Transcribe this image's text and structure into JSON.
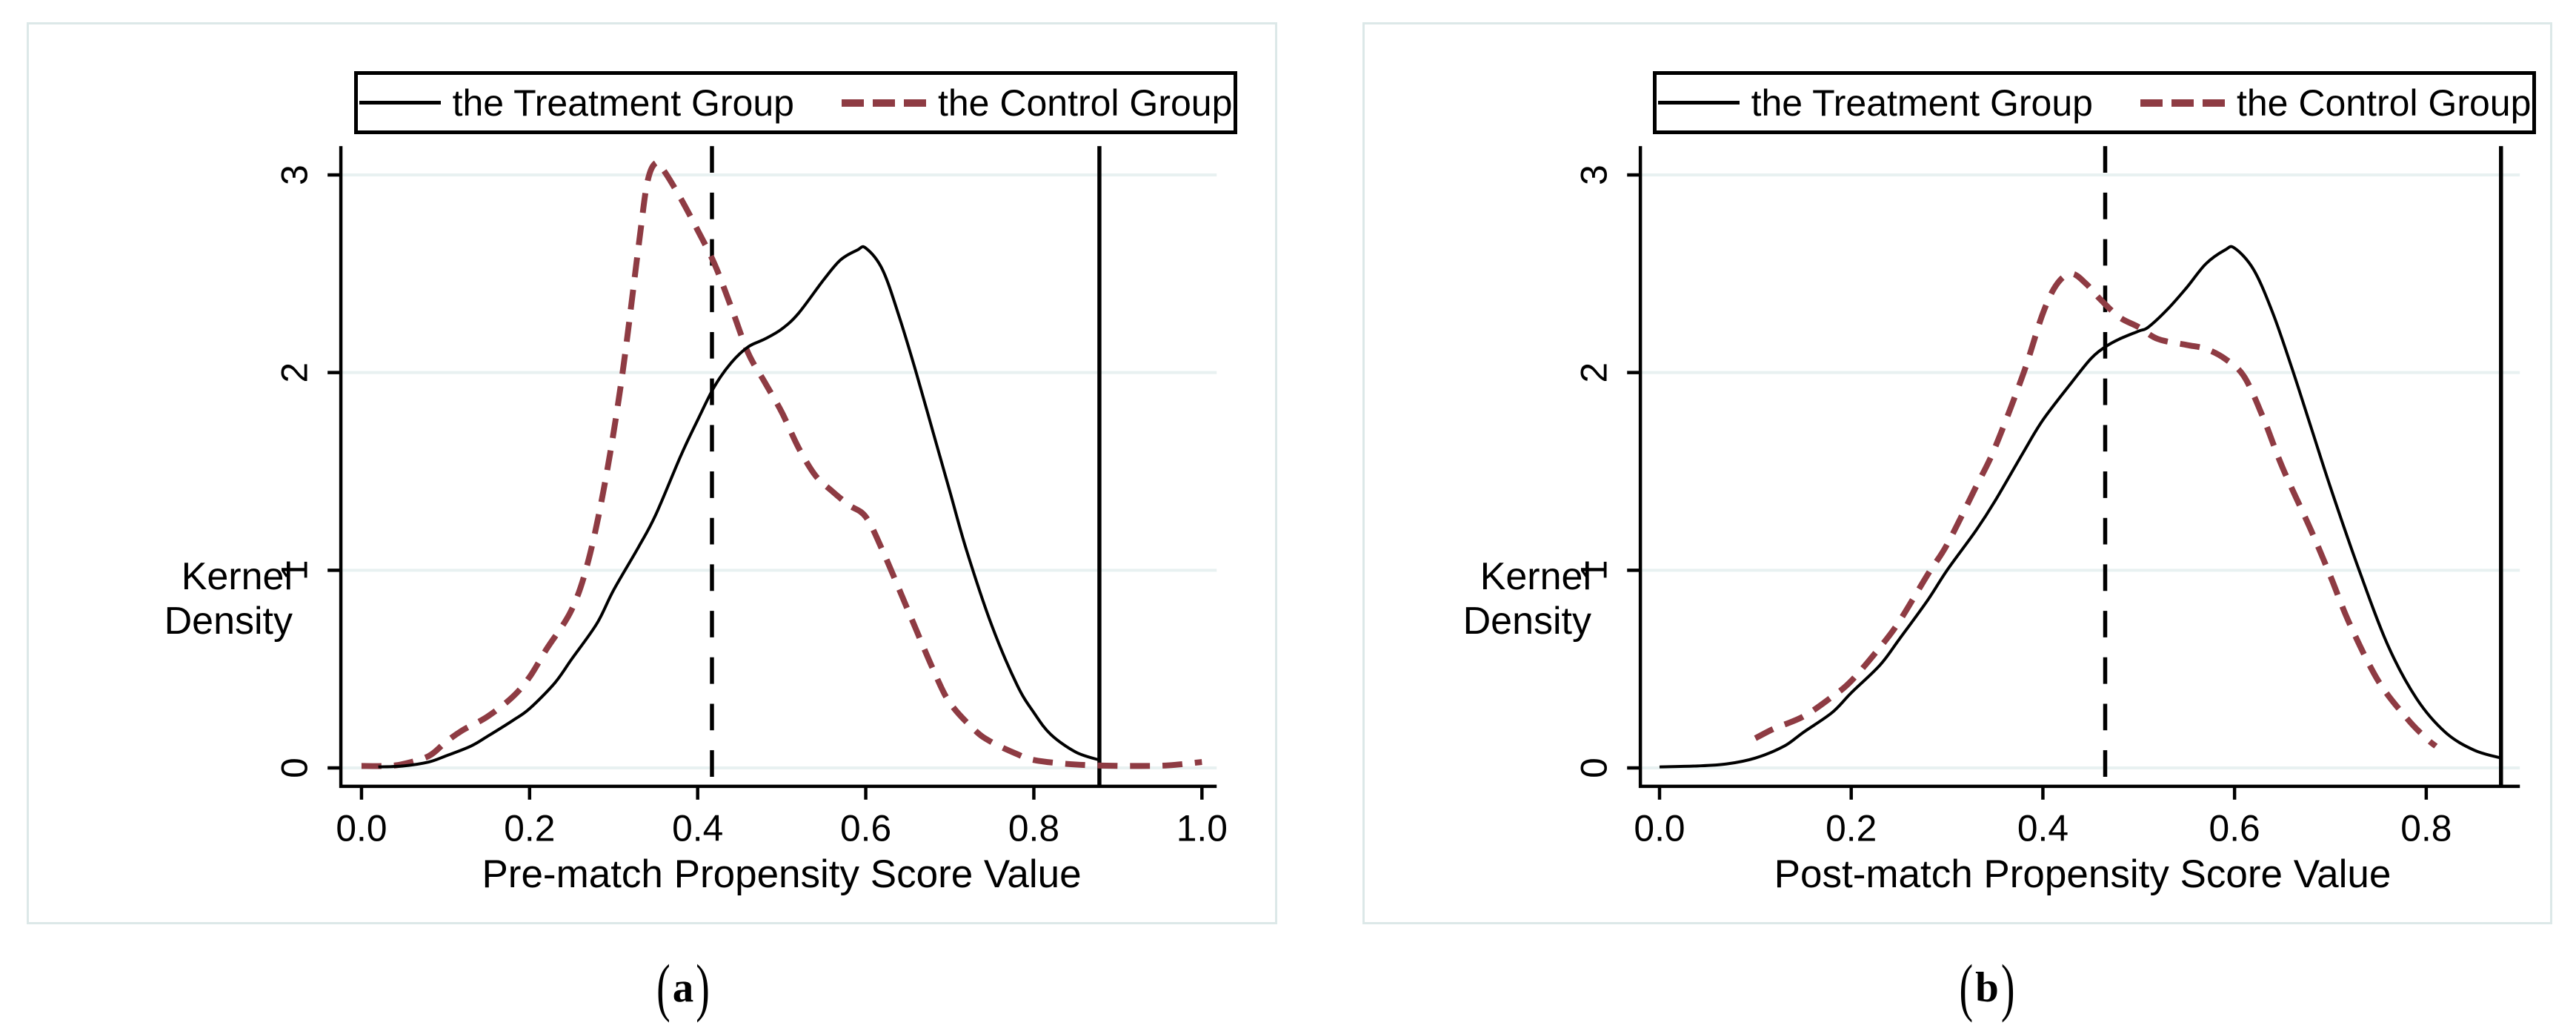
{
  "colors": {
    "treatment": "#000000",
    "control": "#8e3b43",
    "grid": "#e8f1f1",
    "panel_border": "#dce8e8",
    "axis": "#000000",
    "background": "#ffffff"
  },
  "legend": {
    "treatment_label": "the Treatment Group",
    "control_label": "the Control Group"
  },
  "panels": [
    {
      "caption": "(a)",
      "caption_open": "(",
      "caption_letter": "a",
      "caption_close": ")",
      "xlabel": "Pre-match Propensity Score Value",
      "ylabel": "Kernel Density"
    },
    {
      "caption": "(b)",
      "caption_open": "(",
      "caption_letter": "b",
      "caption_close": ")",
      "xlabel": "Post-match Propensity Score Value",
      "ylabel": "Kernel Density"
    }
  ],
  "chart_data": [
    {
      "type": "line",
      "title": "",
      "xlabel": "Pre-match Propensity Score Value",
      "ylabel": "Kernel Density",
      "xlim": [
        -0.025,
        1.02
      ],
      "ylim": [
        0,
        3.15
      ],
      "xticks": [
        0.0,
        0.2,
        0.4,
        0.6,
        0.8,
        1.0
      ],
      "xtick_labels": [
        "0.0",
        "0.2",
        "0.4",
        "0.6",
        "0.8",
        "1.0"
      ],
      "yticks": [
        0,
        1,
        2,
        3
      ],
      "ytick_labels": [
        "0",
        "1",
        "2",
        "3"
      ],
      "grid": "horizontal",
      "legend_position": "top",
      "vlines": [
        {
          "x": 0.417,
          "style": "dashed",
          "color": "#000000"
        },
        {
          "x": 0.878,
          "style": "solid",
          "color": "#000000"
        }
      ],
      "series": [
        {
          "name": "the Control Group",
          "style": "dashed",
          "color": "#8e3b43",
          "points": [
            [
              0.0,
              0.01
            ],
            [
              0.03,
              0.01
            ],
            [
              0.05,
              0.02
            ],
            [
              0.08,
              0.06
            ],
            [
              0.1,
              0.13
            ],
            [
              0.12,
              0.19
            ],
            [
              0.15,
              0.26
            ],
            [
              0.18,
              0.36
            ],
            [
              0.2,
              0.46
            ],
            [
              0.22,
              0.6
            ],
            [
              0.25,
              0.8
            ],
            [
              0.27,
              1.05
            ],
            [
              0.29,
              1.45
            ],
            [
              0.31,
              1.98
            ],
            [
              0.33,
              2.65
            ],
            [
              0.34,
              2.96
            ],
            [
              0.35,
              3.06
            ],
            [
              0.36,
              3.02
            ],
            [
              0.38,
              2.88
            ],
            [
              0.4,
              2.72
            ],
            [
              0.42,
              2.55
            ],
            [
              0.44,
              2.33
            ],
            [
              0.46,
              2.1
            ],
            [
              0.48,
              1.95
            ],
            [
              0.5,
              1.8
            ],
            [
              0.52,
              1.62
            ],
            [
              0.54,
              1.48
            ],
            [
              0.56,
              1.4
            ],
            [
              0.58,
              1.33
            ],
            [
              0.6,
              1.27
            ],
            [
              0.62,
              1.1
            ],
            [
              0.65,
              0.8
            ],
            [
              0.68,
              0.5
            ],
            [
              0.7,
              0.33
            ],
            [
              0.73,
              0.19
            ],
            [
              0.75,
              0.13
            ],
            [
              0.78,
              0.07
            ],
            [
              0.8,
              0.04
            ],
            [
              0.84,
              0.02
            ],
            [
              0.88,
              0.012
            ],
            [
              0.92,
              0.01
            ],
            [
              0.96,
              0.013
            ],
            [
              1.0,
              0.03
            ]
          ]
        },
        {
          "name": "the Treatment Group",
          "style": "solid",
          "color": "#000000",
          "points": [
            [
              0.02,
              0.005
            ],
            [
              0.05,
              0.01
            ],
            [
              0.08,
              0.03
            ],
            [
              0.1,
              0.06
            ],
            [
              0.13,
              0.11
            ],
            [
              0.15,
              0.16
            ],
            [
              0.18,
              0.24
            ],
            [
              0.2,
              0.3
            ],
            [
              0.23,
              0.43
            ],
            [
              0.25,
              0.55
            ],
            [
              0.28,
              0.73
            ],
            [
              0.3,
              0.9
            ],
            [
              0.33,
              1.12
            ],
            [
              0.35,
              1.28
            ],
            [
              0.38,
              1.58
            ],
            [
              0.4,
              1.76
            ],
            [
              0.42,
              1.93
            ],
            [
              0.44,
              2.05
            ],
            [
              0.46,
              2.13
            ],
            [
              0.48,
              2.17
            ],
            [
              0.5,
              2.22
            ],
            [
              0.52,
              2.3
            ],
            [
              0.55,
              2.47
            ],
            [
              0.57,
              2.57
            ],
            [
              0.59,
              2.62
            ],
            [
              0.6,
              2.63
            ],
            [
              0.62,
              2.52
            ],
            [
              0.64,
              2.28
            ],
            [
              0.66,
              2.0
            ],
            [
              0.68,
              1.7
            ],
            [
              0.7,
              1.4
            ],
            [
              0.72,
              1.1
            ],
            [
              0.75,
              0.72
            ],
            [
              0.78,
              0.42
            ],
            [
              0.8,
              0.28
            ],
            [
              0.82,
              0.17
            ],
            [
              0.85,
              0.08
            ],
            [
              0.878,
              0.04
            ]
          ]
        }
      ]
    },
    {
      "type": "line",
      "title": "",
      "xlabel": "Post-match Propensity Score Value",
      "ylabel": "Kernel Density",
      "xlim": [
        -0.02,
        0.9
      ],
      "ylim": [
        0,
        3.15
      ],
      "xticks": [
        0.0,
        0.2,
        0.4,
        0.6,
        0.8
      ],
      "xtick_labels": [
        "0.0",
        "0.2",
        "0.4",
        "0.6",
        "0.8"
      ],
      "yticks": [
        0,
        1,
        2,
        3
      ],
      "ytick_labels": [
        "0",
        "1",
        "2",
        "3"
      ],
      "grid": "horizontal",
      "legend_position": "top",
      "vlines": [
        {
          "x": 0.465,
          "style": "dashed",
          "color": "#000000"
        },
        {
          "x": 0.878,
          "style": "solid",
          "color": "#000000"
        }
      ],
      "series": [
        {
          "name": "the Control Group",
          "style": "dashed",
          "color": "#8e3b43",
          "points": [
            [
              0.1,
              0.15
            ],
            [
              0.12,
              0.2
            ],
            [
              0.15,
              0.26
            ],
            [
              0.18,
              0.36
            ],
            [
              0.2,
              0.44
            ],
            [
              0.23,
              0.61
            ],
            [
              0.25,
              0.74
            ],
            [
              0.28,
              0.98
            ],
            [
              0.3,
              1.13
            ],
            [
              0.33,
              1.42
            ],
            [
              0.35,
              1.62
            ],
            [
              0.38,
              2.0
            ],
            [
              0.4,
              2.3
            ],
            [
              0.415,
              2.45
            ],
            [
              0.43,
              2.5
            ],
            [
              0.445,
              2.45
            ],
            [
              0.46,
              2.37
            ],
            [
              0.48,
              2.28
            ],
            [
              0.5,
              2.23
            ],
            [
              0.52,
              2.17
            ],
            [
              0.55,
              2.14
            ],
            [
              0.57,
              2.12
            ],
            [
              0.59,
              2.07
            ],
            [
              0.61,
              1.98
            ],
            [
              0.63,
              1.77
            ],
            [
              0.65,
              1.52
            ],
            [
              0.68,
              1.2
            ],
            [
              0.7,
              0.97
            ],
            [
              0.72,
              0.73
            ],
            [
              0.75,
              0.44
            ],
            [
              0.78,
              0.25
            ],
            [
              0.8,
              0.15
            ],
            [
              0.81,
              0.11
            ]
          ]
        },
        {
          "name": "the Treatment Group",
          "style": "solid",
          "color": "#000000",
          "points": [
            [
              0.0,
              0.005
            ],
            [
              0.04,
              0.01
            ],
            [
              0.07,
              0.02
            ],
            [
              0.1,
              0.05
            ],
            [
              0.13,
              0.11
            ],
            [
              0.15,
              0.18
            ],
            [
              0.18,
              0.28
            ],
            [
              0.2,
              0.38
            ],
            [
              0.23,
              0.52
            ],
            [
              0.25,
              0.65
            ],
            [
              0.28,
              0.85
            ],
            [
              0.3,
              1.0
            ],
            [
              0.33,
              1.2
            ],
            [
              0.35,
              1.35
            ],
            [
              0.38,
              1.6
            ],
            [
              0.4,
              1.76
            ],
            [
              0.43,
              1.95
            ],
            [
              0.45,
              2.07
            ],
            [
              0.465,
              2.13
            ],
            [
              0.48,
              2.17
            ],
            [
              0.5,
              2.21
            ],
            [
              0.51,
              2.23
            ],
            [
              0.53,
              2.32
            ],
            [
              0.55,
              2.43
            ],
            [
              0.57,
              2.55
            ],
            [
              0.59,
              2.62
            ],
            [
              0.6,
              2.63
            ],
            [
              0.62,
              2.52
            ],
            [
              0.64,
              2.3
            ],
            [
              0.66,
              2.02
            ],
            [
              0.68,
              1.72
            ],
            [
              0.7,
              1.42
            ],
            [
              0.73,
              1.0
            ],
            [
              0.76,
              0.62
            ],
            [
              0.79,
              0.35
            ],
            [
              0.82,
              0.18
            ],
            [
              0.85,
              0.09
            ],
            [
              0.878,
              0.05
            ]
          ]
        }
      ]
    }
  ]
}
